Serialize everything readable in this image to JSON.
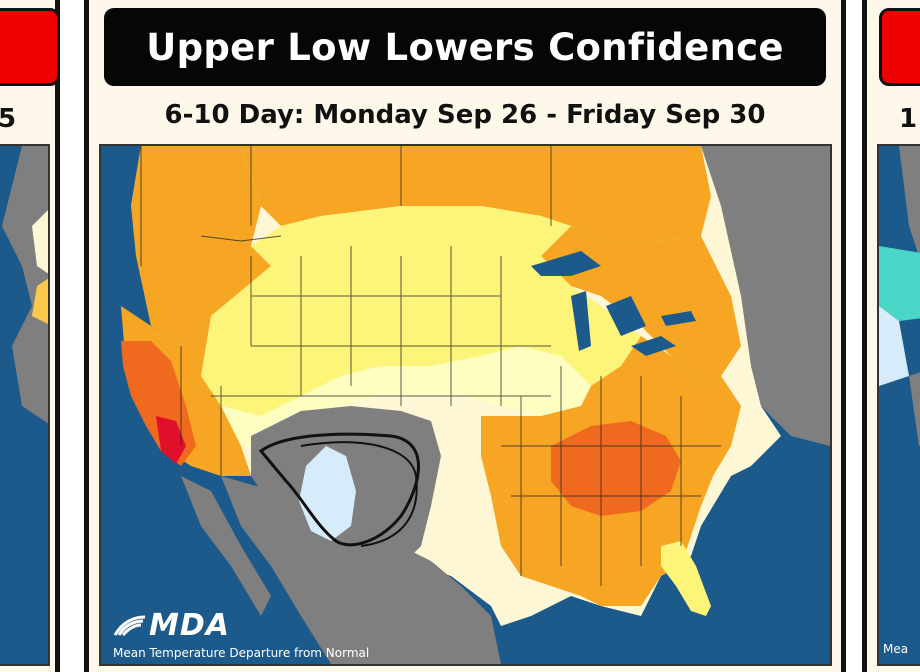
{
  "panels": {
    "center": {
      "title": "Upper Low Lowers Confidence",
      "subtitle": "6-10 Day: Monday Sep 26 - Friday Sep 30",
      "logo_text": "MDA",
      "map_caption": "Mean Temperature Departure from Normal"
    },
    "left": {
      "subtitle_fragment": "5"
    },
    "right": {
      "subtitle_fragment": "1",
      "logo_fragment": "Mea"
    }
  },
  "map_colors": {
    "ocean": "#1c5a8c",
    "outside_forecast": "#808080",
    "near_normal_light_yellow": "#fefec0",
    "slightly_above_yellow": "#fdf47a",
    "above_orange_light": "#fbc84a",
    "above_orange": "#f6a623",
    "well_above_orange_red": "#ef6a1e",
    "much_above_red": "#e0102a",
    "below_gray": "#7f7f7f",
    "cool_light_blue": "#d6ecfb",
    "near_normal_cream": "#fdf7d6",
    "cool_teal": "#4ad7c8"
  }
}
